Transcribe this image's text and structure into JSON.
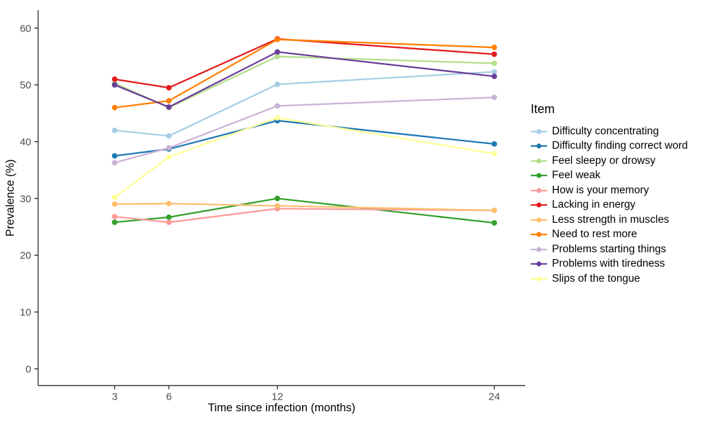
{
  "figure": {
    "legend_title": "Item",
    "x_axis_label": "Time since infection (months)",
    "y_axis_label": "Prevalence (%)"
  },
  "chart_data": {
    "type": "line",
    "x": [
      3,
      6,
      12,
      24
    ],
    "x_tick_labels": [
      "3",
      "6",
      "12",
      "24"
    ],
    "y_ticks": [
      0,
      10,
      20,
      30,
      40,
      50,
      60
    ],
    "xlim": [
      -1.3,
      25.7
    ],
    "ylim": [
      -3,
      63
    ],
    "xlabel": "Time since infection (months)",
    "ylabel": "Prevalence (%)",
    "legend_title": "Item",
    "legend_position": "right",
    "grid": false,
    "marker": "circle",
    "axis_color": "#333333",
    "tick_label_color": "#4d4d4d",
    "series": [
      {
        "name": "Difficulty concentrating",
        "color": "#A6CEE3",
        "values": [
          42.0,
          41.0,
          50.1,
          52.3
        ]
      },
      {
        "name": "Difficulty finding correct word",
        "color": "#1F78B4",
        "values": [
          37.5,
          38.7,
          43.7,
          39.6
        ]
      },
      {
        "name": "Feel sleepy or drowsy",
        "color": "#B2DF8A",
        "values": [
          50.3,
          46.0,
          55.0,
          53.8
        ]
      },
      {
        "name": "Feel weak",
        "color": "#33A02C",
        "values": [
          25.8,
          26.7,
          30.0,
          25.7
        ]
      },
      {
        "name": "How is your memory",
        "color": "#FB9A99",
        "values": [
          26.8,
          25.8,
          28.2,
          27.9
        ]
      },
      {
        "name": "Lacking in energy",
        "color": "#E31A1C",
        "values": [
          51.0,
          49.5,
          58.1,
          55.4
        ]
      },
      {
        "name": "Less strength in muscles",
        "color": "#FDBF6F",
        "values": [
          29.0,
          29.1,
          28.7,
          27.9
        ]
      },
      {
        "name": "Need to rest more",
        "color": "#FF7F00",
        "values": [
          46.0,
          47.2,
          58.0,
          56.6
        ]
      },
      {
        "name": "Problems starting things",
        "color": "#CAB2D6",
        "values": [
          36.3,
          38.9,
          46.3,
          47.8
        ]
      },
      {
        "name": "Problems with tiredness",
        "color": "#6A3D9A",
        "values": [
          50.0,
          46.1,
          55.8,
          51.5
        ]
      },
      {
        "name": "Slips of the tongue",
        "color": "#FFFF99",
        "values": [
          30.2,
          37.3,
          44.2,
          37.9
        ]
      }
    ]
  }
}
